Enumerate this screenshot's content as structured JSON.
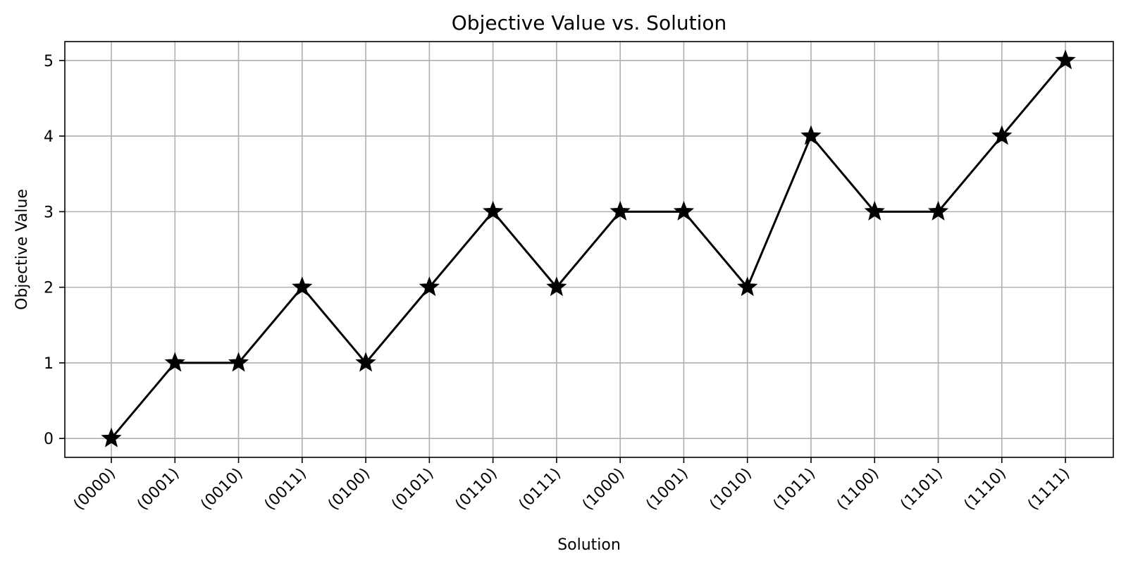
{
  "chart_data": {
    "type": "line",
    "title": "Objective Value vs. Solution",
    "xlabel": "Solution",
    "ylabel": "Objective Value",
    "categories": [
      "(0000)",
      "(0001)",
      "(0010)",
      "(0011)",
      "(0100)",
      "(0101)",
      "(0110)",
      "(0111)",
      "(1000)",
      "(1001)",
      "(1010)",
      "(1011)",
      "(1100)",
      "(1101)",
      "(1110)",
      "(1111)"
    ],
    "series": [
      {
        "values": [
          0,
          1,
          1,
          2,
          1,
          2,
          3,
          2,
          3,
          3,
          2,
          4,
          3,
          3,
          4,
          5
        ],
        "color": "#000000",
        "marker": "star"
      }
    ],
    "yticks": [
      0,
      1,
      2,
      3,
      4,
      5
    ],
    "ylim": [
      -0.25,
      5.25
    ],
    "grid": true,
    "grid_color": "#b0b0b0",
    "legend": "none"
  }
}
